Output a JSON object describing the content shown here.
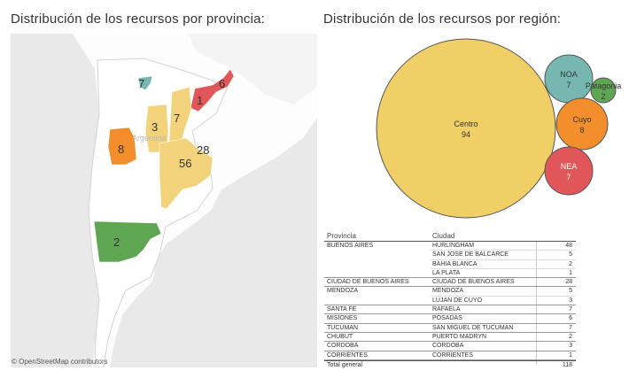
{
  "map_title": "Distribución de los recursos por provincia:",
  "bubble_title": "Distribución de los recursos por región:",
  "map": {
    "country_label": "Argentina",
    "attribution": "© OpenStreetMap contributors",
    "provinces": [
      {
        "name": "Buenos Aires",
        "value": "56",
        "color": "#f2d27a"
      },
      {
        "name": "Ciudad de Buenos Aires",
        "value": "28",
        "color": "#f2d27a"
      },
      {
        "name": "Chubut",
        "value": "2",
        "color": "#5fa653"
      },
      {
        "name": "Mendoza",
        "value": "8",
        "color": "#f28e2b"
      },
      {
        "name": "Santa Fe",
        "value": "7",
        "color": "#f2d27a"
      },
      {
        "name": "Cordoba",
        "value": "3",
        "color": "#f2d27a"
      },
      {
        "name": "Misiones",
        "value": "6",
        "color": "#e15759"
      },
      {
        "name": "Corrientes",
        "value": "1",
        "color": "#e15759"
      },
      {
        "name": "Tucuman",
        "value": "7",
        "color": "#76b7b2"
      }
    ]
  },
  "chart_data": {
    "type": "bubble",
    "series": [
      {
        "name": "Centro",
        "value": 94,
        "color": "#f0cf67"
      },
      {
        "name": "NOA",
        "value": 7,
        "color": "#76b7b2"
      },
      {
        "name": "Patagonia",
        "value": 2,
        "color": "#5fa653"
      },
      {
        "name": "Cuyo",
        "value": 8,
        "color": "#f28e2b"
      },
      {
        "name": "NEA",
        "value": 7,
        "color": "#e15759"
      }
    ]
  },
  "table": {
    "headers": {
      "provincia": "Provincia",
      "ciudad": "Ciudad"
    },
    "groups": [
      {
        "provincia": "BUENOS AIRES",
        "rows": [
          {
            "ciudad": "HURLINGHAM",
            "valor": "48"
          },
          {
            "ciudad": "SAN JOSE DE BALCARCE",
            "valor": "5"
          },
          {
            "ciudad": "BAHIA BLANCA",
            "valor": "2"
          },
          {
            "ciudad": "LA PLATA",
            "valor": "1"
          }
        ]
      },
      {
        "provincia": "CIUDAD DE BUENOS AIRES",
        "rows": [
          {
            "ciudad": "CIUDAD DE BUENOS AIRES",
            "valor": "28"
          }
        ]
      },
      {
        "provincia": "MENDOZA",
        "rows": [
          {
            "ciudad": "MENDOZA",
            "valor": "5"
          },
          {
            "ciudad": "LUJAN DE CUYO",
            "valor": "3"
          }
        ]
      },
      {
        "provincia": "SANTA FE",
        "rows": [
          {
            "ciudad": "RAFAELA",
            "valor": "7"
          }
        ]
      },
      {
        "provincia": "MISIONES",
        "rows": [
          {
            "ciudad": "POSADAS",
            "valor": "6"
          }
        ]
      },
      {
        "provincia": "TUCUMAN",
        "rows": [
          {
            "ciudad": "SAN MIGUEL DE TUCUMAN",
            "valor": "7"
          }
        ]
      },
      {
        "provincia": "CHUBUT",
        "rows": [
          {
            "ciudad": "PUERTO MADRYN",
            "valor": "2"
          }
        ]
      },
      {
        "provincia": "CORDOBA",
        "rows": [
          {
            "ciudad": "CORDOBA",
            "valor": "3"
          }
        ]
      },
      {
        "provincia": "CORRIENTES",
        "rows": [
          {
            "ciudad": "CORRIENTES",
            "valor": "1"
          }
        ]
      }
    ],
    "total_label": "Total general",
    "total_value": "118"
  }
}
